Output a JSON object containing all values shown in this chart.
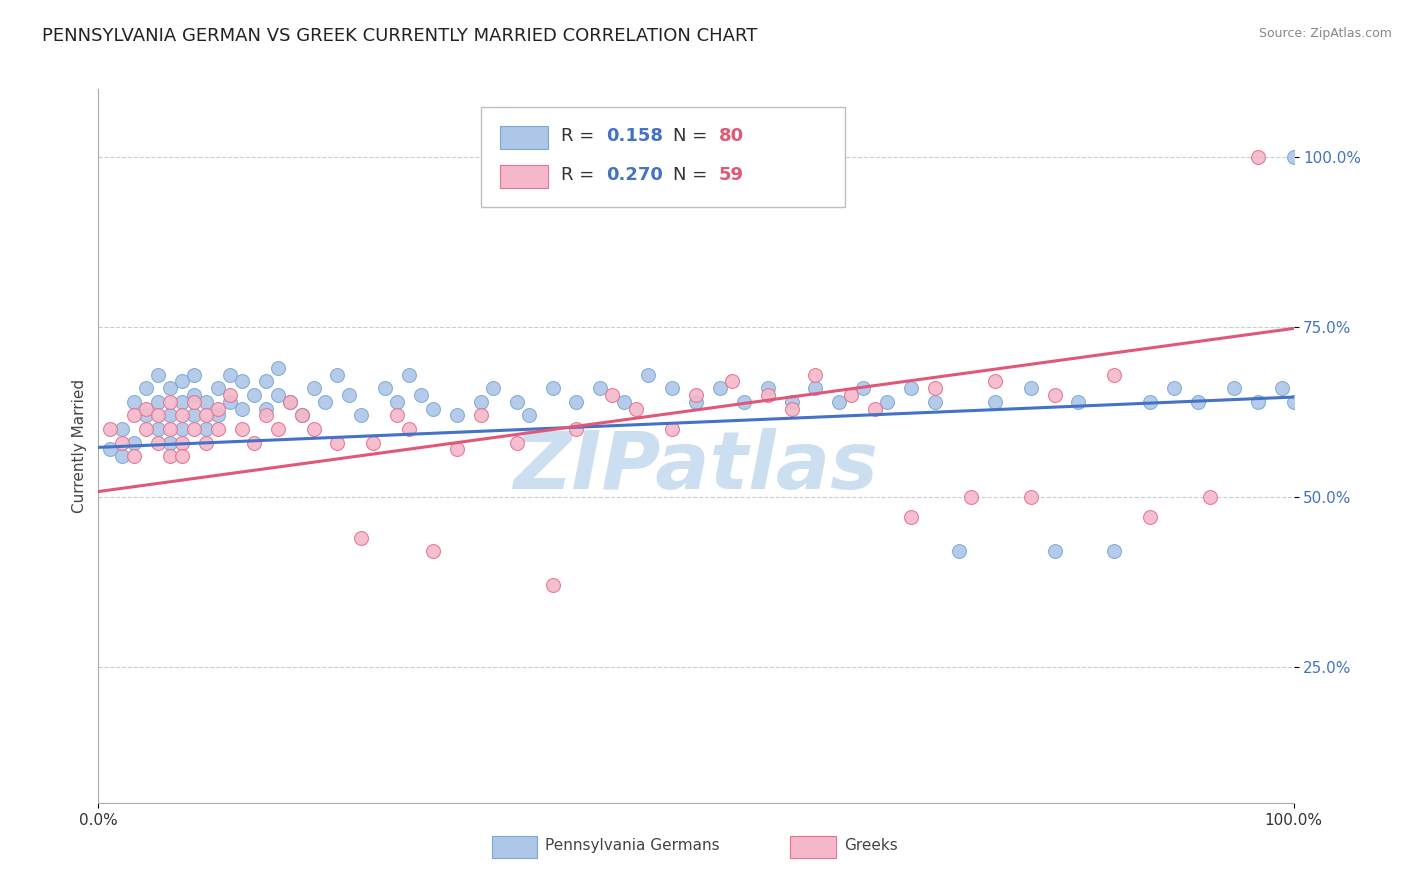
{
  "title": "PENNSYLVANIA GERMAN VS GREEK CURRENTLY MARRIED CORRELATION CHART",
  "source": "Source: ZipAtlas.com",
  "ylabel": "Currently Married",
  "watermark": "ZIPatlas",
  "series": [
    {
      "name": "Pennsylvania Germans",
      "color": "#aec6e8",
      "edge_color": "#7aaad4",
      "line_color": "#4472c4",
      "R": 0.158,
      "N": 80,
      "R_color": "#4472c4",
      "N_color": "#e05878",
      "x": [
        0.01,
        0.02,
        0.02,
        0.03,
        0.03,
        0.04,
        0.04,
        0.05,
        0.05,
        0.05,
        0.06,
        0.06,
        0.06,
        0.07,
        0.07,
        0.07,
        0.08,
        0.08,
        0.08,
        0.09,
        0.09,
        0.1,
        0.1,
        0.11,
        0.11,
        0.12,
        0.12,
        0.13,
        0.14,
        0.14,
        0.15,
        0.15,
        0.16,
        0.17,
        0.18,
        0.19,
        0.2,
        0.21,
        0.22,
        0.24,
        0.25,
        0.26,
        0.27,
        0.28,
        0.3,
        0.32,
        0.33,
        0.35,
        0.36,
        0.38,
        0.4,
        0.42,
        0.44,
        0.46,
        0.48,
        0.5,
        0.52,
        0.54,
        0.56,
        0.58,
        0.6,
        0.62,
        0.64,
        0.66,
        0.68,
        0.7,
        0.72,
        0.75,
        0.78,
        0.8,
        0.82,
        0.85,
        0.88,
        0.9,
        0.92,
        0.95,
        0.97,
        0.99,
        1.0,
        1.0
      ],
      "y": [
        0.57,
        0.56,
        0.6,
        0.58,
        0.64,
        0.62,
        0.66,
        0.6,
        0.64,
        0.68,
        0.58,
        0.62,
        0.66,
        0.6,
        0.64,
        0.67,
        0.62,
        0.65,
        0.68,
        0.6,
        0.64,
        0.62,
        0.66,
        0.64,
        0.68,
        0.63,
        0.67,
        0.65,
        0.63,
        0.67,
        0.65,
        0.69,
        0.64,
        0.62,
        0.66,
        0.64,
        0.68,
        0.65,
        0.62,
        0.66,
        0.64,
        0.68,
        0.65,
        0.63,
        0.62,
        0.64,
        0.66,
        0.64,
        0.62,
        0.66,
        0.64,
        0.66,
        0.64,
        0.68,
        0.66,
        0.64,
        0.66,
        0.64,
        0.66,
        0.64,
        0.66,
        0.64,
        0.66,
        0.64,
        0.66,
        0.64,
        0.42,
        0.64,
        0.66,
        0.42,
        0.64,
        0.42,
        0.64,
        0.66,
        0.64,
        0.66,
        0.64,
        0.66,
        0.64,
        1.0
      ]
    },
    {
      "name": "Greeks",
      "color": "#f4b8ca",
      "edge_color": "#e87090",
      "line_color": "#e05878",
      "R": 0.27,
      "N": 59,
      "R_color": "#4472c4",
      "N_color": "#e05878",
      "x": [
        0.01,
        0.02,
        0.03,
        0.03,
        0.04,
        0.04,
        0.05,
        0.05,
        0.06,
        0.06,
        0.06,
        0.07,
        0.07,
        0.07,
        0.08,
        0.08,
        0.09,
        0.09,
        0.1,
        0.1,
        0.11,
        0.12,
        0.13,
        0.14,
        0.15,
        0.16,
        0.17,
        0.18,
        0.2,
        0.22,
        0.23,
        0.25,
        0.26,
        0.28,
        0.3,
        0.32,
        0.35,
        0.38,
        0.4,
        0.43,
        0.45,
        0.48,
        0.5,
        0.53,
        0.56,
        0.58,
        0.6,
        0.63,
        0.65,
        0.68,
        0.7,
        0.73,
        0.75,
        0.78,
        0.8,
        0.85,
        0.88,
        0.93,
        0.97
      ],
      "y": [
        0.6,
        0.58,
        0.62,
        0.56,
        0.6,
        0.63,
        0.58,
        0.62,
        0.56,
        0.6,
        0.64,
        0.58,
        0.62,
        0.56,
        0.6,
        0.64,
        0.58,
        0.62,
        0.6,
        0.63,
        0.65,
        0.6,
        0.58,
        0.62,
        0.6,
        0.64,
        0.62,
        0.6,
        0.58,
        0.44,
        0.58,
        0.62,
        0.6,
        0.42,
        0.57,
        0.62,
        0.58,
        0.37,
        0.6,
        0.65,
        0.63,
        0.6,
        0.65,
        0.67,
        0.65,
        0.63,
        0.68,
        0.65,
        0.63,
        0.47,
        0.66,
        0.5,
        0.67,
        0.5,
        0.65,
        0.68,
        0.47,
        0.5,
        1.0
      ]
    }
  ],
  "blue_line": {
    "x0": 0.0,
    "y0": 0.573,
    "x1": 1.0,
    "y1": 0.647
  },
  "pink_line": {
    "x0": 0.0,
    "y0": 0.508,
    "x1": 1.0,
    "y1": 0.748
  },
  "y_ticks": [
    0.25,
    0.5,
    0.75,
    1.0
  ],
  "y_tick_labels": [
    "25.0%",
    "50.0%",
    "75.0%",
    "100.0%"
  ],
  "ylim": [
    0.05,
    1.1
  ],
  "xlim": [
    0.0,
    1.0
  ],
  "title_fontsize": 13,
  "axis_label_fontsize": 11,
  "tick_fontsize": 11,
  "legend_fontsize": 13,
  "watermark_fontsize": 58,
  "watermark_color": "#ccdff0",
  "background_color": "#ffffff",
  "grid_color": "#cccccc",
  "marker_size": 100
}
